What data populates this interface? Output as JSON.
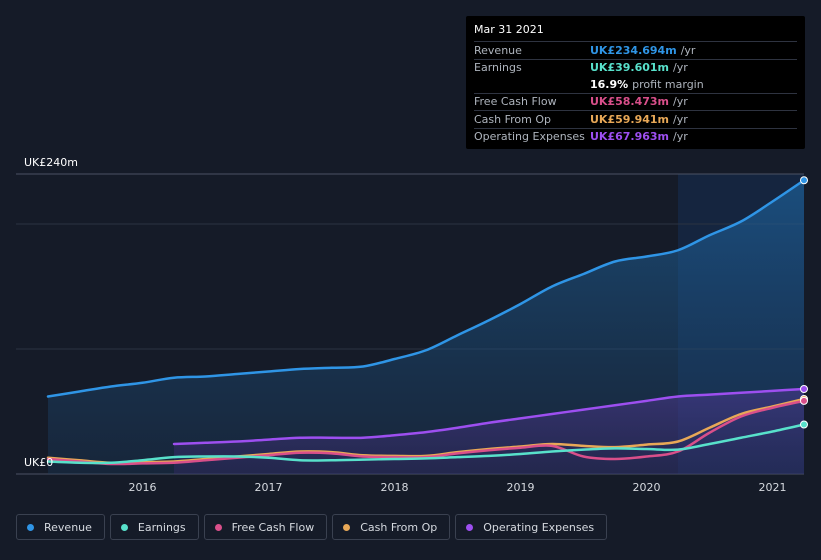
{
  "tooltip": {
    "date": "Mar 31 2021",
    "rows": [
      {
        "label": "Revenue",
        "value": "UK£234.694m",
        "unit": "/yr",
        "color": "#2f95e6"
      },
      {
        "label": "Earnings",
        "value": "UK£39.601m",
        "unit": "/yr",
        "color": "#58e1cb"
      },
      {
        "label": "",
        "value": "16.9%",
        "unit": "profit margin",
        "color": "#ffffff"
      },
      {
        "label": "Free Cash Flow",
        "value": "UK£58.473m",
        "unit": "/yr",
        "color": "#d94f8a"
      },
      {
        "label": "Cash From Op",
        "value": "UK£59.941m",
        "unit": "/yr",
        "color": "#e8a857"
      },
      {
        "label": "Operating Expenses",
        "value": "UK£67.963m",
        "unit": "/yr",
        "color": "#9d4ff0"
      }
    ]
  },
  "legend": [
    {
      "label": "Revenue",
      "color": "#2f95e6"
    },
    {
      "label": "Earnings",
      "color": "#58e1cb"
    },
    {
      "label": "Free Cash Flow",
      "color": "#d94f8a"
    },
    {
      "label": "Cash From Op",
      "color": "#e8a857"
    },
    {
      "label": "Operating Expenses",
      "color": "#9d4ff0"
    }
  ],
  "chart_data": {
    "type": "line",
    "y_top_label": "UK£240m",
    "y_bottom_label": "UK£0",
    "ylim": [
      0,
      240
    ],
    "xlim": [
      2015.25,
      2021.25
    ],
    "x_ticks": [
      "2016",
      "2017",
      "2018",
      "2019",
      "2020",
      "2021"
    ],
    "x_tick_values": [
      2016,
      2017,
      2018,
      2019,
      2020,
      2021
    ],
    "highlight_from": 2020.25,
    "series": [
      {
        "name": "Revenue",
        "color": "#2f95e6",
        "fill": true,
        "x": [
          2015.25,
          2015.5,
          2015.75,
          2016.0,
          2016.25,
          2016.5,
          2016.75,
          2017.0,
          2017.25,
          2017.5,
          2017.75,
          2018.0,
          2018.25,
          2018.5,
          2018.75,
          2019.0,
          2019.25,
          2019.5,
          2019.75,
          2020.0,
          2020.25,
          2020.5,
          2020.75,
          2021.0,
          2021.25
        ],
        "values": [
          62,
          66,
          70,
          73,
          77,
          78,
          80,
          82,
          84,
          85,
          86,
          92,
          99,
          111,
          123,
          136,
          150,
          160,
          170,
          174,
          179,
          191,
          202,
          218,
          235
        ]
      },
      {
        "name": "Operating Expenses",
        "color": "#9d4ff0",
        "fill": true,
        "x": [
          2016.25,
          2016.5,
          2016.75,
          2017.0,
          2017.25,
          2017.5,
          2017.75,
          2018.0,
          2018.25,
          2018.5,
          2018.75,
          2019.0,
          2019.25,
          2019.5,
          2019.75,
          2020.0,
          2020.25,
          2020.5,
          2020.75,
          2021.0,
          2021.25
        ],
        "values": [
          24,
          25,
          26,
          27.5,
          29,
          29,
          29,
          31,
          33.5,
          37,
          41,
          44.5,
          48,
          51.5,
          55,
          58.5,
          62,
          63.5,
          65,
          66.5,
          68
        ]
      },
      {
        "name": "Cash From Op",
        "color": "#e8a857",
        "fill": false,
        "x": [
          2015.25,
          2015.5,
          2015.75,
          2016.0,
          2016.25,
          2016.5,
          2016.75,
          2017.0,
          2017.25,
          2017.5,
          2017.75,
          2018.0,
          2018.25,
          2018.5,
          2018.75,
          2019.0,
          2019.25,
          2019.5,
          2019.75,
          2020.0,
          2020.25,
          2020.5,
          2020.75,
          2021.0,
          2021.25
        ],
        "values": [
          13,
          11,
          9,
          9.5,
          10,
          12,
          14,
          16,
          18,
          17.5,
          15,
          14.5,
          14.5,
          17.5,
          20,
          22,
          24,
          22.5,
          21.5,
          23.5,
          26,
          37,
          48,
          54,
          60
        ]
      },
      {
        "name": "Free Cash Flow",
        "color": "#d94f8a",
        "fill": false,
        "x": [
          2015.25,
          2015.5,
          2015.75,
          2016.0,
          2016.25,
          2016.5,
          2016.75,
          2017.0,
          2017.25,
          2017.5,
          2017.75,
          2018.0,
          2018.25,
          2018.5,
          2018.75,
          2019.0,
          2019.25,
          2019.5,
          2019.75,
          2020.0,
          2020.25,
          2020.5,
          2020.75,
          2021.0,
          2021.25
        ],
        "values": [
          12,
          10,
          8,
          8.5,
          9,
          11,
          13,
          15,
          17,
          16.5,
          14,
          13.5,
          13.5,
          16.5,
          19,
          21,
          22.5,
          14,
          12,
          14,
          18,
          33,
          46,
          53,
          58.5
        ]
      },
      {
        "name": "Earnings",
        "color": "#58e1cb",
        "fill": false,
        "x": [
          2015.25,
          2015.5,
          2015.75,
          2016.0,
          2016.25,
          2016.5,
          2016.75,
          2017.0,
          2017.25,
          2017.5,
          2017.75,
          2018.0,
          2018.25,
          2018.5,
          2018.75,
          2019.0,
          2019.25,
          2019.5,
          2019.75,
          2020.0,
          2020.25,
          2020.5,
          2020.75,
          2021.0,
          2021.25
        ],
        "values": [
          10,
          9,
          9,
          11,
          13.5,
          14,
          14,
          13,
          11,
          11,
          11.5,
          12,
          12.5,
          13.5,
          14.5,
          16,
          18,
          19.5,
          20.5,
          20,
          19.5,
          24,
          29,
          34,
          39.6
        ]
      }
    ]
  }
}
